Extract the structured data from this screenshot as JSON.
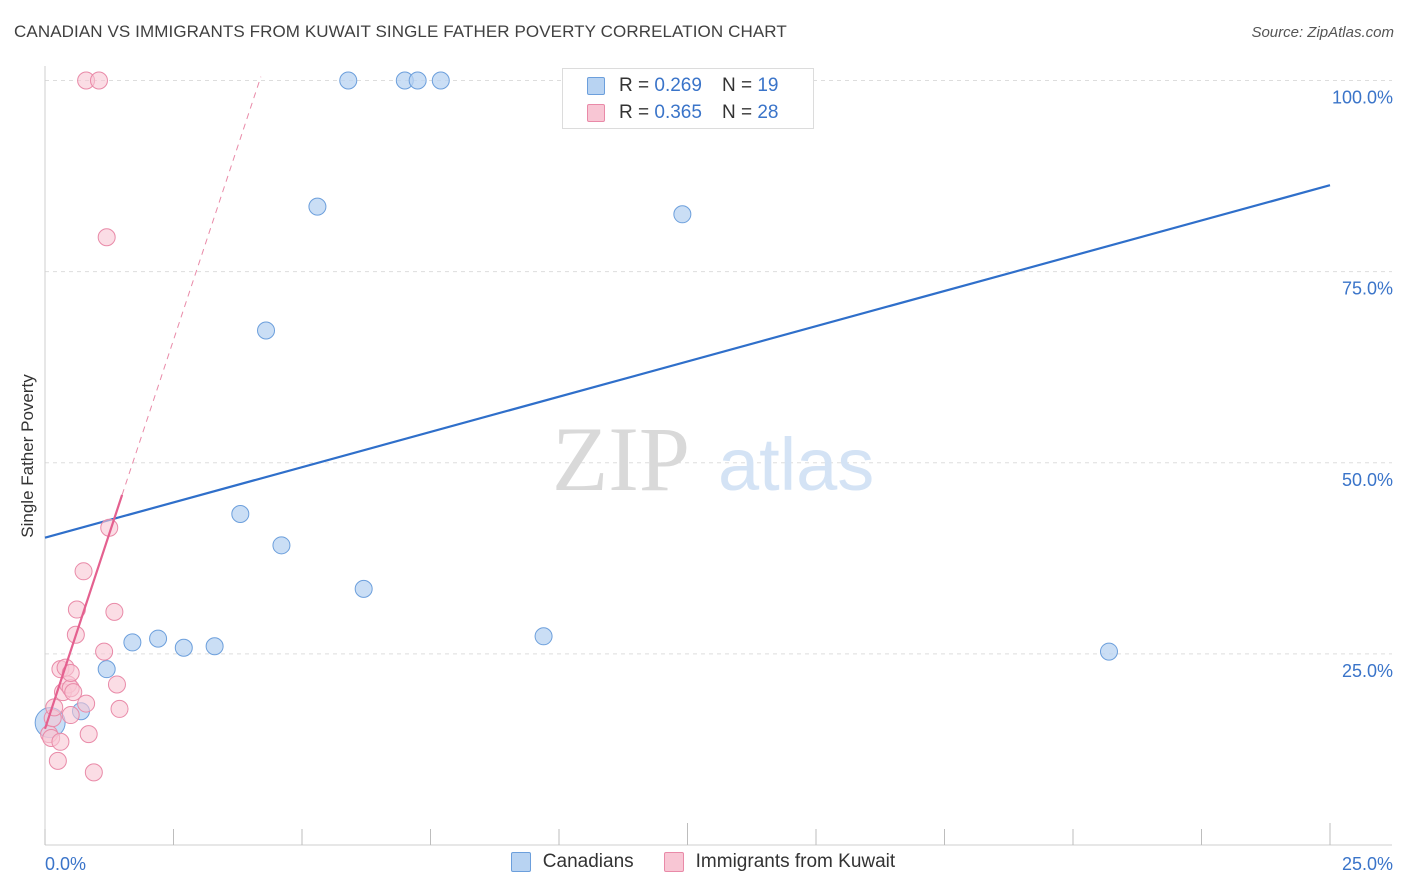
{
  "header": {
    "title": "CANADIAN VS IMMIGRANTS FROM KUWAIT SINGLE FATHER POVERTY CORRELATION CHART",
    "source": "Source: ZipAtlas.com"
  },
  "watermark": {
    "zip": "ZIP",
    "atlas": "atlas"
  },
  "colors": {
    "blue_fill": "#b8d3f2",
    "blue_stroke": "#6c9fdc",
    "blue_line": "#2f6fca",
    "pink_fill": "#f8c6d4",
    "pink_stroke": "#e98aa8",
    "pink_line": "#e4608f",
    "axis_label": "#3a74c9",
    "grid": "#dddddd"
  },
  "legend": {
    "items": [
      {
        "r_label": "R =",
        "r_value": "0.269",
        "n_label": "N =",
        "n_value": "19"
      },
      {
        "r_label": "R =",
        "r_value": "0.365",
        "n_label": "N =",
        "n_value": "28"
      }
    ]
  },
  "bottom_legend": {
    "canadians": "Canadians",
    "kuwait": "Immigrants from Kuwait"
  },
  "chart_data": {
    "type": "scatter",
    "title": "CANADIAN VS IMMIGRANTS FROM KUWAIT SINGLE FATHER POVERTY CORRELATION CHART",
    "xlabel": "",
    "ylabel": "Single Father Poverty",
    "xlim": [
      0,
      25
    ],
    "ylim": [
      0,
      105
    ],
    "x_tick_labels": [
      "0.0%",
      "25.0%"
    ],
    "y_tick_labels": [
      "100.0%",
      "75.0%",
      "50.0%",
      "25.0%"
    ],
    "y_ticks": [
      100,
      75,
      50,
      25
    ],
    "grid": true,
    "series": [
      {
        "name": "Canadians",
        "r": 0.269,
        "n": 19,
        "points": [
          {
            "x": 0.1,
            "y": 16.0,
            "big": true
          },
          {
            "x": 0.7,
            "y": 17.5
          },
          {
            "x": 1.2,
            "y": 23.0
          },
          {
            "x": 1.7,
            "y": 26.5
          },
          {
            "x": 2.2,
            "y": 27.0
          },
          {
            "x": 2.7,
            "y": 25.8
          },
          {
            "x": 3.3,
            "y": 26.0
          },
          {
            "x": 3.8,
            "y": 43.3
          },
          {
            "x": 4.3,
            "y": 67.3
          },
          {
            "x": 4.6,
            "y": 39.2
          },
          {
            "x": 5.3,
            "y": 83.5
          },
          {
            "x": 5.9,
            "y": 100.0
          },
          {
            "x": 6.2,
            "y": 33.5
          },
          {
            "x": 7.0,
            "y": 100.0
          },
          {
            "x": 7.25,
            "y": 100.0
          },
          {
            "x": 7.7,
            "y": 100.0
          },
          {
            "x": 9.7,
            "y": 27.3
          },
          {
            "x": 12.4,
            "y": 82.5
          },
          {
            "x": 20.7,
            "y": 25.3
          }
        ],
        "trend": {
          "x": [
            0,
            25
          ],
          "y": [
            40.2,
            86.3
          ]
        }
      },
      {
        "name": "Immigrants from Kuwait",
        "r": 0.365,
        "n": 28,
        "points": [
          {
            "x": 0.08,
            "y": 14.5
          },
          {
            "x": 0.12,
            "y": 14.0
          },
          {
            "x": 0.15,
            "y": 16.6
          },
          {
            "x": 0.18,
            "y": 18.0
          },
          {
            "x": 0.25,
            "y": 11.0
          },
          {
            "x": 0.3,
            "y": 13.5
          },
          {
            "x": 0.3,
            "y": 23.0
          },
          {
            "x": 0.35,
            "y": 20.0
          },
          {
            "x": 0.4,
            "y": 23.2
          },
          {
            "x": 0.45,
            "y": 21.0
          },
          {
            "x": 0.5,
            "y": 20.5
          },
          {
            "x": 0.5,
            "y": 22.5
          },
          {
            "x": 0.55,
            "y": 20.0
          },
          {
            "x": 0.6,
            "y": 27.5
          },
          {
            "x": 0.62,
            "y": 30.8
          },
          {
            "x": 0.75,
            "y": 35.8
          },
          {
            "x": 0.8,
            "y": 18.5
          },
          {
            "x": 0.85,
            "y": 14.5
          },
          {
            "x": 0.95,
            "y": 9.5
          },
          {
            "x": 0.8,
            "y": 100.0
          },
          {
            "x": 1.05,
            "y": 100.0
          },
          {
            "x": 1.15,
            "y": 25.3
          },
          {
            "x": 1.2,
            "y": 79.5
          },
          {
            "x": 1.25,
            "y": 41.5
          },
          {
            "x": 1.35,
            "y": 30.5
          },
          {
            "x": 1.4,
            "y": 21.0
          },
          {
            "x": 1.45,
            "y": 17.8
          },
          {
            "x": 0.5,
            "y": 17.0
          }
        ],
        "trend": {
          "x": [
            0,
            1.5
          ],
          "y": [
            15.2,
            45.8
          ]
        },
        "trend_dashed": {
          "x": [
            1.5,
            4.2
          ],
          "y": [
            45.8,
            100.5
          ]
        }
      }
    ]
  }
}
